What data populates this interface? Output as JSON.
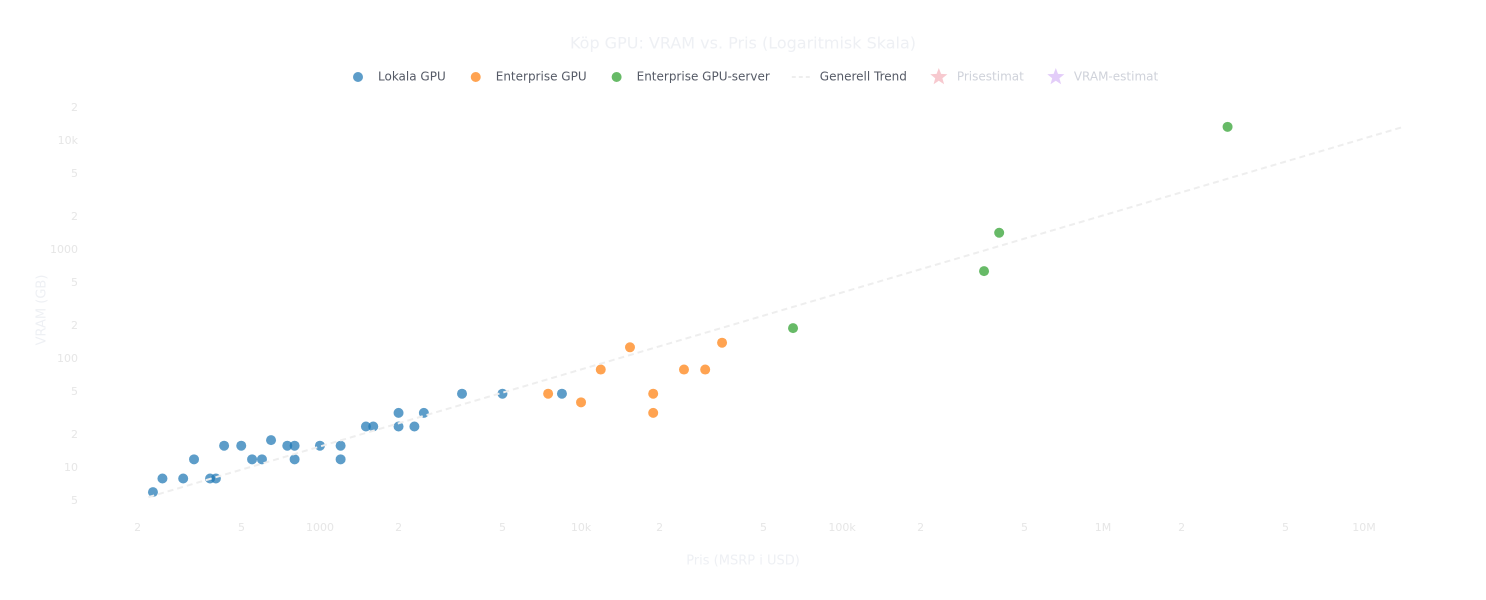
{
  "chart_data": {
    "type": "scatter",
    "title": "Köp GPU: VRAM vs. Pris (Logaritmisk Skala)",
    "x_label": "Pris (MSRP i USD)",
    "y_label": "VRAM (GB)",
    "log_x": true,
    "log_y": true,
    "xlim": [
      150,
      15000000
    ],
    "ylim": [
      3.7,
      23800
    ],
    "xticks": [
      {
        "value": 200,
        "label": "2"
      },
      {
        "value": 500,
        "label": "5"
      },
      1000,
      {
        "value": 2000,
        "label": "2"
      },
      {
        "value": 5000,
        "label": "5"
      },
      {
        "value": 10000,
        "label": "10k"
      },
      {
        "value": 20000,
        "label": "2"
      },
      {
        "value": 50000,
        "label": "5"
      },
      {
        "value": 100000,
        "label": "100k"
      },
      {
        "value": 200000,
        "label": "2"
      },
      {
        "value": 500000,
        "label": "5"
      },
      {
        "value": 1000000,
        "label": "1M"
      },
      {
        "value": 2000000,
        "label": "2"
      },
      {
        "value": 5000000,
        "label": "5"
      },
      {
        "value": 10000000,
        "label": "10M"
      }
    ],
    "yticks": [
      5,
      10,
      {
        "value": 20,
        "label": "2"
      },
      {
        "value": 50,
        "label": "5"
      },
      100,
      {
        "value": 200,
        "label": "2"
      },
      {
        "value": 500,
        "label": "5"
      },
      1000,
      {
        "value": 2000,
        "label": "2"
      },
      {
        "value": 5000,
        "label": "5"
      },
      {
        "value": 10000,
        "label": "10k"
      },
      {
        "value": 20000,
        "label": "2"
      }
    ],
    "series": [
      {
        "name": "Lokala GPU",
        "color": "#1f77b4",
        "marker": "circle",
        "x": [
          229,
          249,
          299,
          329,
          379,
          399,
          429,
          499,
          549,
          599,
          649,
          749,
          799,
          799,
          999,
          1199,
          1199,
          1499,
          1599,
          1999,
          1999,
          2299,
          2499,
          3499,
          5000,
          8450
        ],
        "values": [
          6,
          8,
          8,
          12,
          8,
          8,
          16,
          16,
          12,
          12,
          18,
          16,
          16,
          12,
          16,
          16,
          12,
          24,
          24,
          24,
          32,
          24,
          32,
          48,
          48,
          48
        ]
      },
      {
        "name": "Enterprise GPU",
        "color": "#ff7f0e",
        "marker": "circle",
        "x": [
          7480,
          10000,
          11900,
          15400,
          18900,
          18900,
          24800,
          29900,
          34700
        ],
        "values": [
          48,
          40,
          80,
          128,
          48,
          32,
          80,
          80,
          141
        ]
      },
      {
        "name": "Enterprise GPU-server",
        "color": "#2ca02c",
        "marker": "circle",
        "x": [
          64900,
          350000,
          400000,
          3000000
        ],
        "values": [
          192,
          640,
          1440,
          13500
        ]
      },
      {
        "name": "Generell Trend",
        "color": "#eeeeee",
        "marker": "line",
        "x": [
          220,
          14000000
        ],
        "values": [
          5.4,
          13400
        ]
      },
      {
        "name": "Prisestimat",
        "color": "#f7c9cf",
        "marker": "star",
        "x": [],
        "values": []
      },
      {
        "name": "VRAM-estimat",
        "color": "#e3cdf9",
        "marker": "star",
        "x": [],
        "values": []
      }
    ]
  }
}
